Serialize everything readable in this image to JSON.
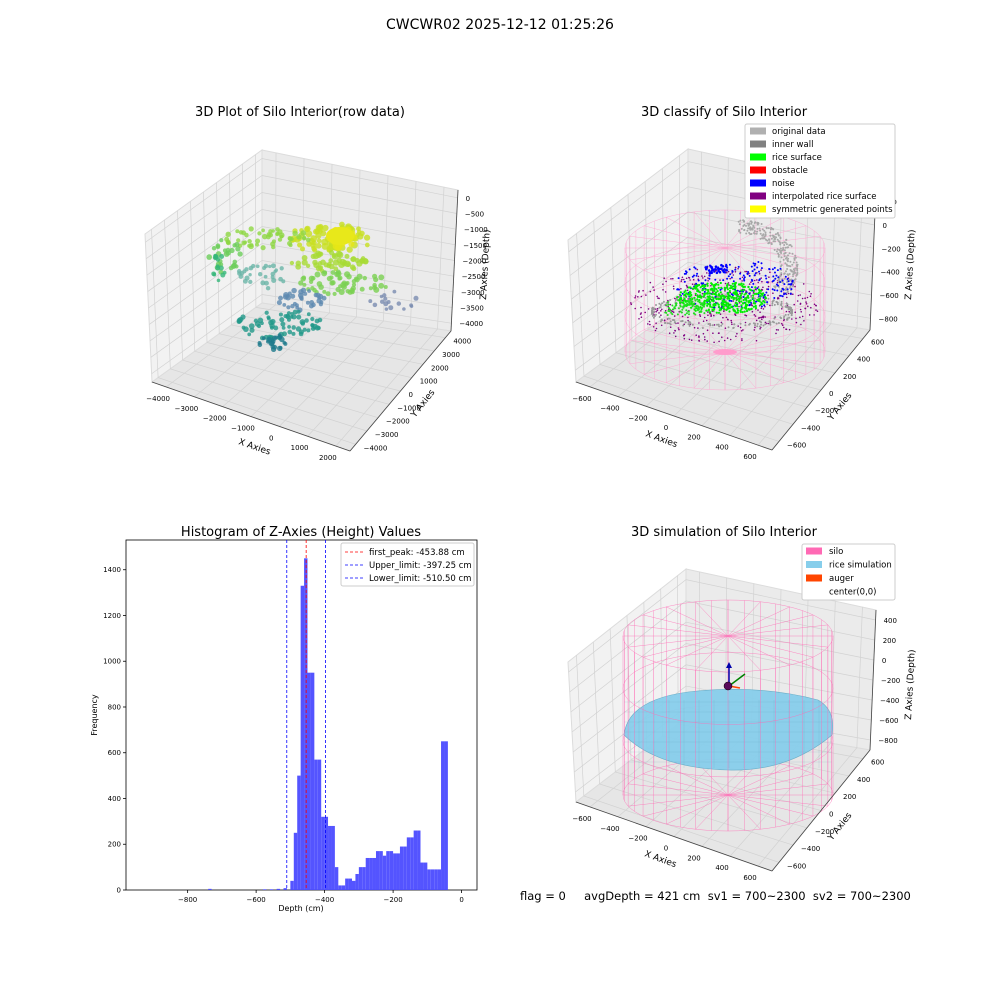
{
  "figure": {
    "title": "CWCWR02 2025-12-12 01:25:26",
    "caption": "flag = 0     avgDepth = 421 cm  sv1 = 700~2300  sv2 = 700~2300"
  },
  "colors": {
    "hist_bar": "#4b4bff",
    "first_peak": "#ff0000",
    "limit": "#0000ff",
    "silo": "#ff69b4",
    "rice_sim": "#87ceeb",
    "auger": "#ff4500"
  },
  "chart_data": [
    {
      "id": "raw",
      "type": "scatter",
      "title": "3D Plot of Silo Interior(row data)",
      "xlabel": "X Axies",
      "ylabel": "Y Axies",
      "zlabel": "Z Axies (Depth)",
      "xticks": [
        "−4000",
        "−3000",
        "−2000",
        "−1000",
        "0",
        "1000",
        "2000"
      ],
      "yticks": [
        "−4000",
        "−3000",
        "−2000",
        "−1000",
        "0",
        "1000",
        "2000",
        "3000",
        "4000"
      ],
      "zticks": [
        "0",
        "−500",
        "−1000",
        "−1500",
        "−2000",
        "−2500",
        "−3000",
        "−3500",
        "−4000"
      ],
      "xlim": [
        -4500,
        2000
      ],
      "ylim": [
        -4000,
        4000
      ],
      "zlim": [
        -4000,
        0
      ]
    },
    {
      "id": "classify",
      "type": "scatter",
      "title": "3D classify of Silo Interior",
      "xlabel": "X Axies",
      "ylabel": "Y Axies",
      "zlabel": "Z Axies (Depth)",
      "xticks": [
        "−600",
        "−400",
        "−200",
        "0",
        "200",
        "400",
        "600"
      ],
      "yticks": [
        "−600",
        "−400",
        "−200",
        "0",
        "200",
        "400",
        "600"
      ],
      "zticks": [
        "200",
        "0",
        "−200",
        "−400",
        "−600",
        "−800"
      ],
      "legend_position": "top-right",
      "legend": [
        {
          "label": "original data",
          "color": "#b0b0b0"
        },
        {
          "label": "inner wall",
          "color": "#808080"
        },
        {
          "label": "rice surface",
          "color": "#00ff00"
        },
        {
          "label": "obstacle",
          "color": "#ff0000"
        },
        {
          "label": "noise",
          "color": "#0000ff"
        },
        {
          "label": "interpolated rice surface",
          "color": "#800080"
        },
        {
          "label": "symmetric generated points",
          "color": "#ffff00"
        }
      ]
    },
    {
      "id": "hist",
      "type": "bar",
      "title": "Histogram of Z-Axies (Height) Values",
      "xlabel": "Depth (cm)",
      "ylabel": "Frequency",
      "xlim": [
        -980,
        45
      ],
      "ylim": [
        0,
        1530
      ],
      "xticks": [
        -800,
        -600,
        -400,
        -200,
        0
      ],
      "xtick_labels": [
        "−800",
        "−600",
        "−400",
        "−200",
        "0"
      ],
      "yticks": [
        0,
        200,
        400,
        600,
        800,
        1000,
        1200,
        1400
      ],
      "bin_width": 10,
      "bin_starts": [
        -740,
        -580,
        -560,
        -540,
        -520,
        -500,
        -490,
        -480,
        -470,
        -460,
        -450,
        -440,
        -430,
        -420,
        -410,
        -400,
        -390,
        -380,
        -370,
        -360,
        -350,
        -340,
        -330,
        -320,
        -310,
        -300,
        -290,
        -280,
        -270,
        -260,
        -250,
        -240,
        -230,
        -220,
        -210,
        -200,
        -190,
        -180,
        -170,
        -160,
        -150,
        -140,
        -130,
        -120,
        -110,
        -100,
        -90,
        -80,
        -70,
        -60,
        -50,
        -40,
        -30,
        -20,
        -10
      ],
      "counts": [
        5,
        3,
        3,
        5,
        8,
        40,
        250,
        500,
        1330,
        1450,
        950,
        950,
        570,
        570,
        320,
        320,
        280,
        280,
        100,
        20,
        20,
        50,
        50,
        40,
        70,
        100,
        100,
        140,
        140,
        140,
        170,
        170,
        150,
        170,
        170,
        160,
        160,
        190,
        190,
        230,
        230,
        260,
        260,
        120,
        120,
        90,
        90,
        90,
        90,
        650,
        650,
        0,
        0,
        0,
        0
      ],
      "vlines": [
        {
          "label": "first_peak: -453.88 cm",
          "x": -453.88,
          "color": "#ff0000"
        },
        {
          "label": "Upper_limit: -397.25 cm",
          "x": -397.25,
          "color": "#0000ff"
        },
        {
          "label": "Lower_limit: -510.50 cm",
          "x": -510.5,
          "color": "#0000ff"
        }
      ],
      "legend_position": "top-right"
    },
    {
      "id": "sim",
      "type": "scatter",
      "title": "3D simulation of Silo Interior",
      "xlabel": "X Axies",
      "ylabel": "Y Axies",
      "zlabel": "Z Axies (Depth)",
      "xticks": [
        "−600",
        "−400",
        "−200",
        "0",
        "200",
        "400",
        "600"
      ],
      "yticks": [
        "−600",
        "−400",
        "−200",
        "0",
        "200",
        "400",
        "600"
      ],
      "zticks": [
        "400",
        "200",
        "0",
        "−200",
        "−400",
        "−600",
        "−800"
      ],
      "legend_position": "top-right",
      "legend": [
        {
          "label": "silo",
          "color": "#ff69b4"
        },
        {
          "label": "rice simulation",
          "color": "#87ceeb"
        },
        {
          "label": "auger",
          "color": "#ff4500"
        },
        {
          "label": "center(0,0)",
          "color": "#ffffff"
        }
      ]
    }
  ]
}
